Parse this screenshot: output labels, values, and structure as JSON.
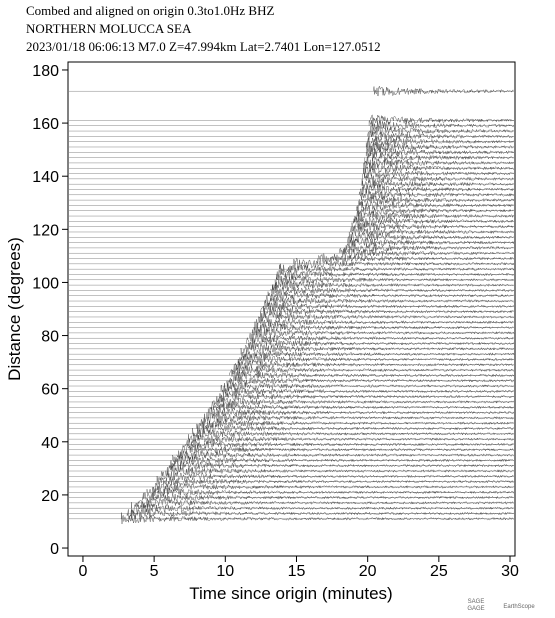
{
  "chart_data": {
    "type": "seismogram",
    "title": "Combed and aligned on origin  0.3to1.0Hz  BHZ",
    "subtitle": "NORTHERN MOLUCCA SEA",
    "annotation": "2023/01/18  06:06:13  M7.0  Z=47.994km Lat=2.7401 Lon=127.0512",
    "xlabel": "Time since origin (minutes)",
    "ylabel": "Distance (degrees)",
    "xlim": [
      -1.05,
      30.35
    ],
    "ylim": [
      -3,
      183
    ],
    "xticks": [
      0,
      5,
      10,
      15,
      20,
      25,
      30
    ],
    "yticks": [
      0,
      20,
      40,
      60,
      80,
      100,
      120,
      140,
      160,
      180
    ],
    "color": "#333333",
    "distances": [
      11,
      13,
      15,
      17,
      19,
      21,
      23,
      25,
      27,
      29,
      31,
      33,
      35,
      37,
      39,
      41,
      43,
      45,
      47,
      49,
      51,
      53,
      55,
      57,
      59,
      61,
      63,
      65,
      67,
      69,
      71,
      73,
      75,
      77,
      79,
      81,
      83,
      85,
      87,
      89,
      91,
      93,
      95,
      97,
      99,
      101,
      103,
      105,
      107,
      109,
      111,
      113,
      115,
      117,
      119,
      121,
      123,
      125,
      127,
      129,
      131,
      133,
      135,
      137,
      139,
      141,
      143,
      145,
      147,
      149,
      151,
      153,
      155,
      157,
      159,
      161,
      172
    ],
    "arrivals": [
      2.7,
      3.1,
      3.4,
      3.8,
      4.2,
      4.5,
      4.9,
      5.2,
      5.5,
      5.8,
      6.1,
      6.3,
      6.6,
      6.9,
      7.2,
      7.4,
      7.7,
      8.0,
      8.3,
      8.5,
      8.8,
      9.0,
      9.2,
      9.4,
      9.7,
      9.9,
      10.1,
      10.3,
      10.5,
      10.7,
      10.9,
      11.1,
      11.3,
      11.5,
      11.7,
      11.9,
      12.0,
      12.2,
      12.4,
      12.5,
      12.7,
      12.8,
      13.0,
      13.2,
      13.3,
      13.5,
      13.6,
      13.8,
      14.8,
      16.5,
      18.0,
      18.4,
      18.6,
      18.7,
      18.8,
      18.9,
      19.0,
      19.1,
      19.2,
      19.3,
      19.4,
      19.4,
      19.5,
      19.6,
      19.6,
      19.7,
      19.7,
      19.8,
      19.8,
      19.9,
      19.9,
      20.0,
      20.0,
      20.1,
      20.1,
      20.2,
      20.4
    ],
    "footer": [
      "GAGE",
      "SAGE",
      "EarthScope"
    ]
  }
}
